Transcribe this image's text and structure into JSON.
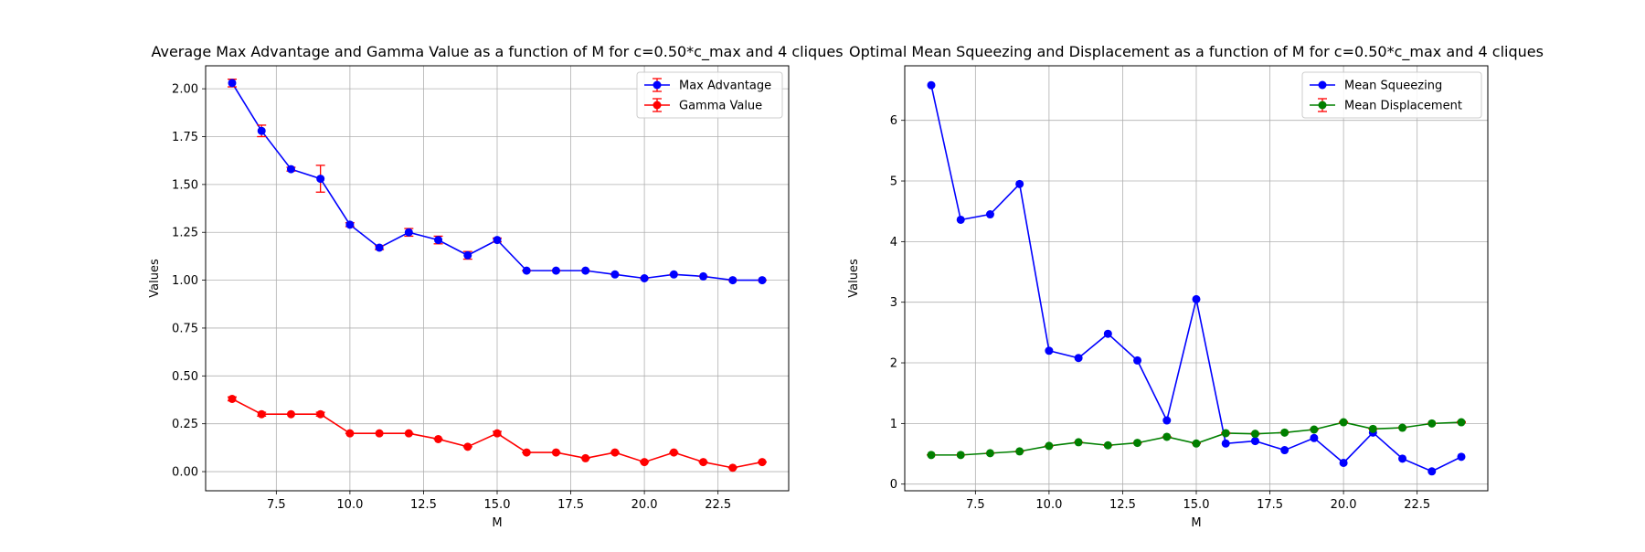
{
  "chart_data": [
    {
      "type": "line",
      "title": "Average Max Advantage and Gamma Value as a function of M for c=0.50*c_max and 4 cliques",
      "xlabel": "M",
      "ylabel": "Values",
      "xlim": [
        5.1,
        24.9
      ],
      "ylim": [
        -0.1,
        2.12
      ],
      "xticks": [
        7.5,
        10.0,
        12.5,
        15.0,
        17.5,
        20.0,
        22.5
      ],
      "xtick_labels": [
        "7.5",
        "10.0",
        "12.5",
        "15.0",
        "17.5",
        "20.0",
        "22.5"
      ],
      "yticks": [
        0.0,
        0.25,
        0.5,
        0.75,
        1.0,
        1.25,
        1.5,
        1.75,
        2.0
      ],
      "ytick_labels": [
        "0.00",
        "0.25",
        "0.50",
        "0.75",
        "1.00",
        "1.25",
        "1.50",
        "1.75",
        "2.00"
      ],
      "grid": true,
      "legend_position": "top-right",
      "x": [
        6,
        7,
        8,
        9,
        10,
        11,
        12,
        13,
        14,
        15,
        16,
        17,
        18,
        19,
        20,
        21,
        22,
        23,
        24
      ],
      "series": [
        {
          "name": "Max Advantage",
          "color": "#0000ff",
          "values": [
            2.03,
            1.78,
            1.58,
            1.53,
            1.29,
            1.17,
            1.25,
            1.21,
            1.13,
            1.21,
            1.05,
            1.05,
            1.05,
            1.03,
            1.01,
            1.03,
            1.02,
            1.0,
            1.0
          ],
          "errors": [
            0.02,
            0.03,
            0.01,
            0.07,
            0.01,
            0.01,
            0.02,
            0.02,
            0.02,
            0.01,
            0.0,
            0.0,
            0.0,
            0.0,
            0.0,
            0.0,
            0.0,
            0.0,
            0.0
          ]
        },
        {
          "name": "Gamma Value",
          "color": "#ff0000",
          "values": [
            0.38,
            0.3,
            0.3,
            0.3,
            0.2,
            0.2,
            0.2,
            0.17,
            0.13,
            0.2,
            0.1,
            0.1,
            0.07,
            0.1,
            0.05,
            0.1,
            0.05,
            0.02,
            0.05
          ],
          "errors": [
            0.01,
            0.01,
            0.0,
            0.01,
            0.0,
            0.0,
            0.0,
            0.0,
            0.0,
            0.01,
            0.0,
            0.0,
            0.0,
            0.0,
            0.0,
            0.0,
            0.0,
            0.0,
            0.0
          ]
        }
      ]
    },
    {
      "type": "line",
      "title": "Optimal Mean Squeezing and Displacement as a function of M for c=0.50*c_max and 4 cliques",
      "xlabel": "M",
      "ylabel": "Values",
      "xlim": [
        5.1,
        24.9
      ],
      "ylim": [
        -0.11,
        6.9
      ],
      "xticks": [
        7.5,
        10.0,
        12.5,
        15.0,
        17.5,
        20.0,
        22.5
      ],
      "xtick_labels": [
        "7.5",
        "10.0",
        "12.5",
        "15.0",
        "17.5",
        "20.0",
        "22.5"
      ],
      "yticks": [
        0,
        1,
        2,
        3,
        4,
        5,
        6
      ],
      "ytick_labels": [
        "0",
        "1",
        "2",
        "3",
        "4",
        "5",
        "6"
      ],
      "grid": true,
      "legend_position": "top-right",
      "x": [
        6,
        7,
        8,
        9,
        10,
        11,
        12,
        13,
        14,
        15,
        16,
        17,
        18,
        19,
        20,
        21,
        22,
        23,
        24
      ],
      "series": [
        {
          "name": "Mean Squeezing",
          "color": "#0000ff",
          "values": [
            6.58,
            4.36,
            4.45,
            4.95,
            2.2,
            2.08,
            2.48,
            2.04,
            1.05,
            3.05,
            0.67,
            0.71,
            0.56,
            0.76,
            0.35,
            0.85,
            0.42,
            0.21,
            0.45
          ],
          "errors": null
        },
        {
          "name": "Mean Displacement",
          "color": "#008000",
          "values": [
            0.48,
            0.48,
            0.51,
            0.54,
            0.63,
            0.69,
            0.64,
            0.68,
            0.78,
            0.67,
            0.84,
            0.83,
            0.85,
            0.9,
            1.02,
            0.91,
            0.93,
            1.0,
            1.02
          ],
          "errors": [
            0.0,
            0.0,
            0.0,
            0.0,
            0.0,
            0.0,
            0.0,
            0.0,
            0.0,
            0.0,
            0.01,
            0.01,
            0.0,
            0.0,
            0.01,
            0.0,
            0.0,
            0.0,
            0.01
          ]
        }
      ]
    }
  ]
}
